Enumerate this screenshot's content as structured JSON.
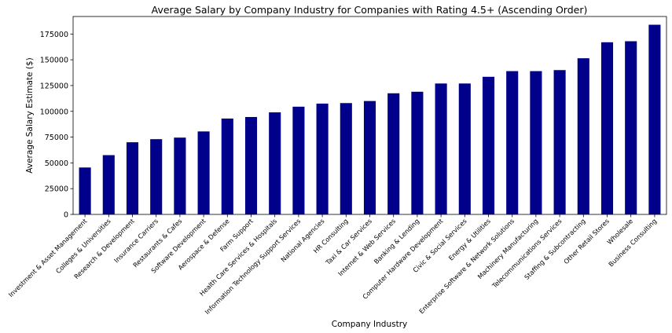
{
  "chart_data": {
    "type": "bar",
    "title": "Average Salary by Company Industry for Companies with Rating 4.5+ (Ascending Order)",
    "xlabel": "Company Industry",
    "ylabel": "Average Salary Estimate ($)",
    "ylim": [
      0,
      192000
    ],
    "yticks": [
      0,
      25000,
      50000,
      75000,
      100000,
      125000,
      150000,
      175000
    ],
    "ytick_labels": [
      "0",
      "25000",
      "50000",
      "75000",
      "100000",
      "125000",
      "150000",
      "175000"
    ],
    "grid": false,
    "bar_color": "#00008b",
    "categories": [
      "Investment & Asset Management",
      "Colleges & Universities",
      "Research & Development",
      "Insurance Carriers",
      "Restaurants & Cafes",
      "Software Development",
      "Aerospace & Defense",
      "Farm Support",
      "Health Care Services & Hospitals",
      "Information Technology Support Services",
      "National Agencies",
      "HR Consulting",
      "Taxi & Car Services",
      "Internet & Web Services",
      "Banking & Lending",
      "Computer Hardware Development",
      "Civic & Social Services",
      "Energy & Utilities",
      "Enterprise Software & Network Solutions",
      "Machinery Manufacturing",
      "Telecommunications Services",
      "Staffing & Subcontracting",
      "Other Retail Stores",
      "Wholesale",
      "Business Consulting"
    ],
    "values": [
      45500,
      57500,
      70000,
      73000,
      74500,
      80500,
      93000,
      94500,
      99000,
      104500,
      107500,
      108000,
      110000,
      117500,
      119000,
      127000,
      127000,
      133500,
      139000,
      139000,
      140000,
      151500,
      167000,
      168000,
      184000
    ]
  }
}
